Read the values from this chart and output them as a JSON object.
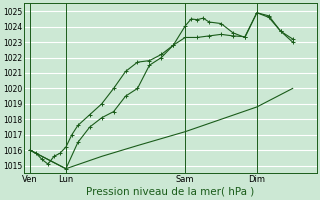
{
  "background_color": "#cce8d4",
  "grid_color": "#ffffff",
  "line_color": "#1a5c1a",
  "xlabel": "Pression niveau de la mer( hPa )",
  "xlabel_fontsize": 7.5,
  "ylim": [
    1014.5,
    1025.5
  ],
  "yticks": [
    1015,
    1016,
    1017,
    1018,
    1019,
    1020,
    1021,
    1022,
    1023,
    1024,
    1025
  ],
  "ytick_fontsize": 5.5,
  "xtick_labels": [
    "Ven",
    "Lun",
    "Sam",
    "Dim"
  ],
  "xtick_positions": [
    0,
    3,
    13,
    19
  ],
  "vline_positions": [
    0,
    3,
    13,
    19
  ],
  "xlim": [
    -0.5,
    24
  ],
  "line1_x": [
    0,
    0.5,
    1,
    1.5,
    2,
    2.5,
    3,
    3.5,
    4,
    5,
    6,
    7,
    8,
    9,
    10,
    11,
    12,
    13,
    13.5,
    14,
    14.5,
    15,
    16,
    17,
    18,
    19,
    20,
    21,
    22
  ],
  "line1_y": [
    1016.0,
    1015.8,
    1015.4,
    1015.1,
    1015.6,
    1015.8,
    1016.2,
    1017.0,
    1017.6,
    1018.3,
    1019.0,
    1020.0,
    1021.1,
    1021.7,
    1021.8,
    1022.2,
    1022.8,
    1024.05,
    1024.5,
    1024.45,
    1024.55,
    1024.3,
    1024.2,
    1023.6,
    1023.3,
    1024.9,
    1024.7,
    1023.7,
    1023.2
  ],
  "line2_x": [
    0,
    3,
    6,
    9,
    13,
    16,
    19,
    22
  ],
  "line2_y": [
    1016.0,
    1014.8,
    1015.6,
    1016.3,
    1017.2,
    1018.0,
    1018.8,
    1020.0
  ],
  "line3_x": [
    0,
    3,
    4,
    5,
    6,
    7,
    8,
    9,
    10,
    11,
    12,
    13,
    14,
    15,
    16,
    17,
    18,
    19,
    20,
    21,
    22
  ],
  "line3_y": [
    1016.0,
    1014.8,
    1016.5,
    1017.5,
    1018.1,
    1018.5,
    1019.5,
    1020.0,
    1021.5,
    1022.0,
    1022.8,
    1023.3,
    1023.3,
    1023.4,
    1023.5,
    1023.4,
    1023.35,
    1024.9,
    1024.6,
    1023.7,
    1023.0
  ]
}
